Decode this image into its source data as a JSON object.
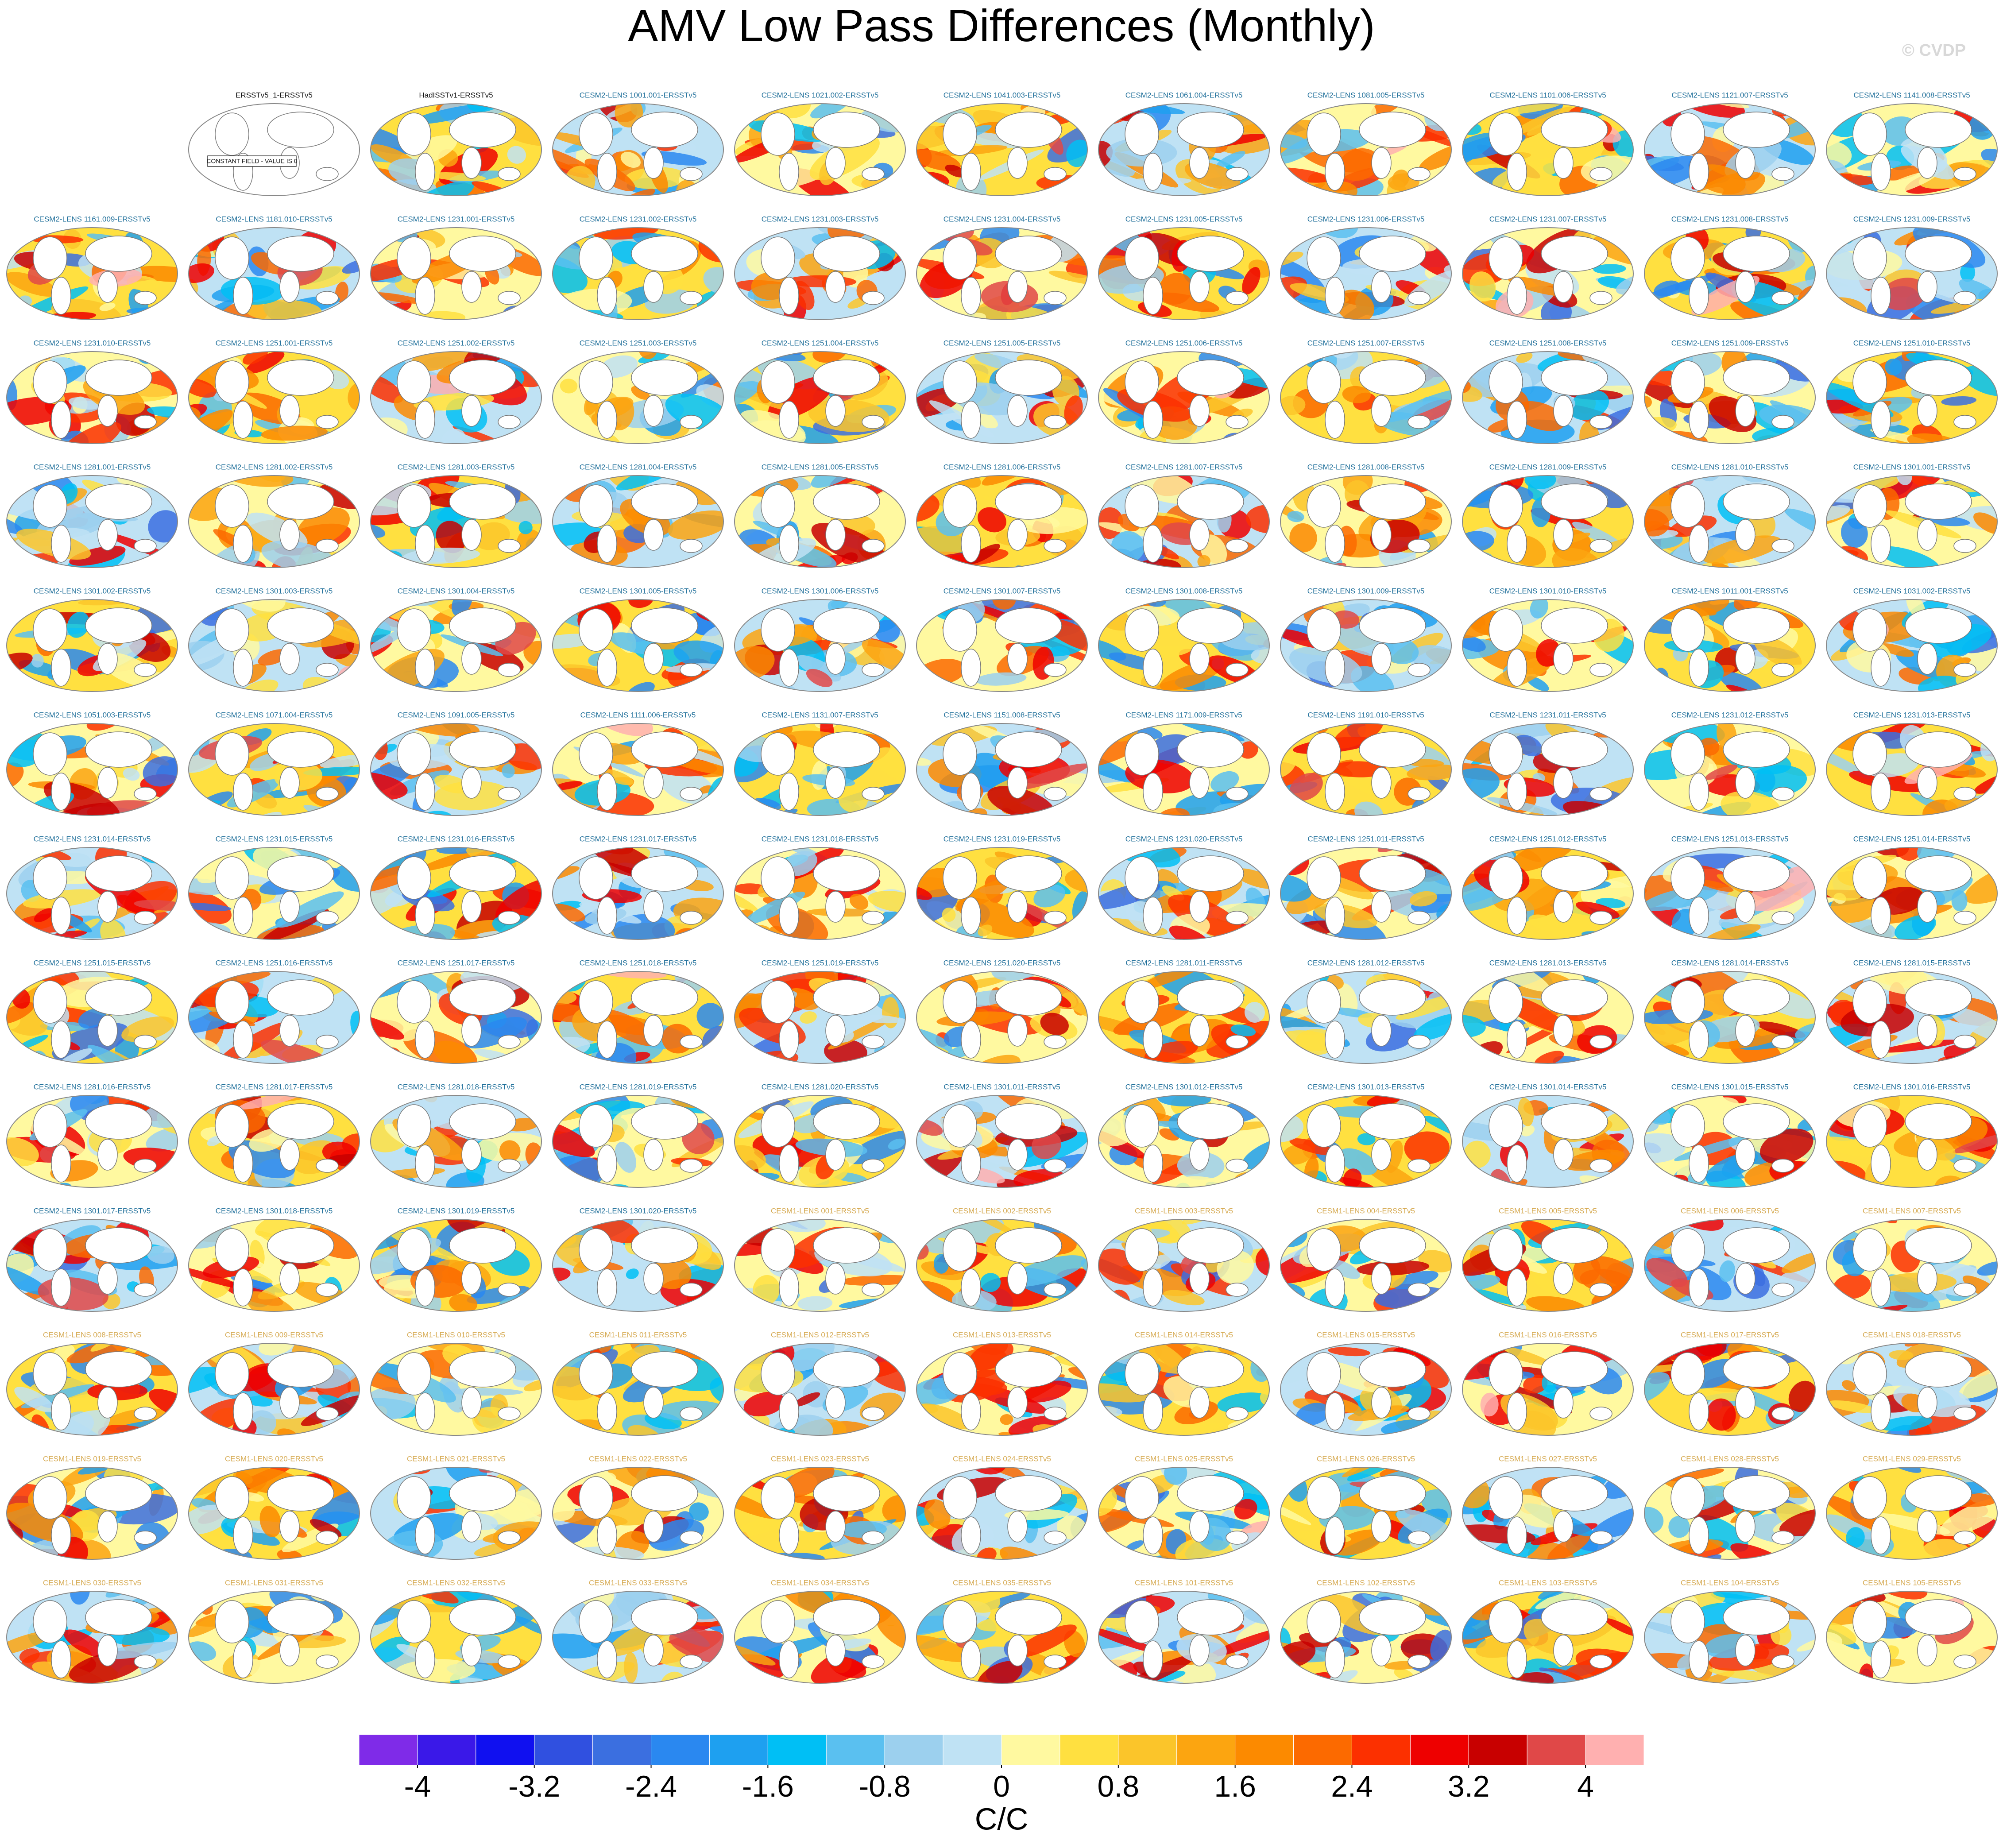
{
  "title": "AMV Low Pass Differences (Monthly)",
  "watermark": "© CVDP",
  "constant_field_note": "CONSTANT FIELD - VALUE IS 0",
  "panel_groups": [
    {
      "color": "#111111",
      "labels": [
        "ERSSTv5_1-ERSSTv5",
        "HadISSTv1-ERSSTv5"
      ]
    },
    {
      "color": "#1f6f9a",
      "labels": [
        "CESM2-LENS 1001.001-ERSSTv5",
        "CESM2-LENS 1021.002-ERSSTv5",
        "CESM2-LENS 1041.003-ERSSTv5",
        "CESM2-LENS 1061.004-ERSSTv5",
        "CESM2-LENS 1081.005-ERSSTv5",
        "CESM2-LENS 1101.006-ERSSTv5",
        "CESM2-LENS 1121.007-ERSSTv5",
        "CESM2-LENS 1141.008-ERSSTv5",
        "CESM2-LENS 1161.009-ERSSTv5",
        "CESM2-LENS 1181.010-ERSSTv5",
        "CESM2-LENS 1231.001-ERSSTv5",
        "CESM2-LENS 1231.002-ERSSTv5",
        "CESM2-LENS 1231.003-ERSSTv5",
        "CESM2-LENS 1231.004-ERSSTv5",
        "CESM2-LENS 1231.005-ERSSTv5",
        "CESM2-LENS 1231.006-ERSSTv5",
        "CESM2-LENS 1231.007-ERSSTv5",
        "CESM2-LENS 1231.008-ERSSTv5",
        "CESM2-LENS 1231.009-ERSSTv5",
        "CESM2-LENS 1231.010-ERSSTv5",
        "CESM2-LENS 1251.001-ERSSTv5",
        "CESM2-LENS 1251.002-ERSSTv5",
        "CESM2-LENS 1251.003-ERSSTv5",
        "CESM2-LENS 1251.004-ERSSTv5",
        "CESM2-LENS 1251.005-ERSSTv5",
        "CESM2-LENS 1251.006-ERSSTv5",
        "CESM2-LENS 1251.007-ERSSTv5",
        "CESM2-LENS 1251.008-ERSSTv5",
        "CESM2-LENS 1251.009-ERSSTv5",
        "CESM2-LENS 1251.010-ERSSTv5",
        "CESM2-LENS 1281.001-ERSSTv5",
        "CESM2-LENS 1281.002-ERSSTv5",
        "CESM2-LENS 1281.003-ERSSTv5",
        "CESM2-LENS 1281.004-ERSSTv5",
        "CESM2-LENS 1281.005-ERSSTv5",
        "CESM2-LENS 1281.006-ERSSTv5",
        "CESM2-LENS 1281.007-ERSSTv5",
        "CESM2-LENS 1281.008-ERSSTv5",
        "CESM2-LENS 1281.009-ERSSTv5",
        "CESM2-LENS 1281.010-ERSSTv5",
        "CESM2-LENS 1301.001-ERSSTv5",
        "CESM2-LENS 1301.002-ERSSTv5",
        "CESM2-LENS 1301.003-ERSSTv5",
        "CESM2-LENS 1301.004-ERSSTv5",
        "CESM2-LENS 1301.005-ERSSTv5",
        "CESM2-LENS 1301.006-ERSSTv5",
        "CESM2-LENS 1301.007-ERSSTv5",
        "CESM2-LENS 1301.008-ERSSTv5",
        "CESM2-LENS 1301.009-ERSSTv5",
        "CESM2-LENS 1301.010-ERSSTv5",
        "CESM2-LENS 1011.001-ERSSTv5",
        "CESM2-LENS 1031.002-ERSSTv5",
        "CESM2-LENS 1051.003-ERSSTv5",
        "CESM2-LENS 1071.004-ERSSTv5",
        "CESM2-LENS 1091.005-ERSSTv5",
        "CESM2-LENS 1111.006-ERSSTv5",
        "CESM2-LENS 1131.007-ERSSTv5",
        "CESM2-LENS 1151.008-ERSSTv5",
        "CESM2-LENS 1171.009-ERSSTv5",
        "CESM2-LENS 1191.010-ERSSTv5",
        "CESM2-LENS 1231.011-ERSSTv5",
        "CESM2-LENS 1231.012-ERSSTv5",
        "CESM2-LENS 1231.013-ERSSTv5",
        "CESM2-LENS 1231.014-ERSSTv5",
        "CESM2-LENS 1231.015-ERSSTv5",
        "CESM2-LENS 1231.016-ERSSTv5",
        "CESM2-LENS 1231.017-ERSSTv5",
        "CESM2-LENS 1231.018-ERSSTv5",
        "CESM2-LENS 1231.019-ERSSTv5",
        "CESM2-LENS 1231.020-ERSSTv5",
        "CESM2-LENS 1251.011-ERSSTv5",
        "CESM2-LENS 1251.012-ERSSTv5",
        "CESM2-LENS 1251.013-ERSSTv5",
        "CESM2-LENS 1251.014-ERSSTv5",
        "CESM2-LENS 1251.015-ERSSTv5",
        "CESM2-LENS 1251.016-ERSSTv5",
        "CESM2-LENS 1251.017-ERSSTv5",
        "CESM2-LENS 1251.018-ERSSTv5",
        "CESM2-LENS 1251.019-ERSSTv5",
        "CESM2-LENS 1251.020-ERSSTv5",
        "CESM2-LENS 1281.011-ERSSTv5",
        "CESM2-LENS 1281.012-ERSSTv5",
        "CESM2-LENS 1281.013-ERSSTv5",
        "CESM2-LENS 1281.014-ERSSTv5",
        "CESM2-LENS 1281.015-ERSSTv5",
        "CESM2-LENS 1281.016-ERSSTv5",
        "CESM2-LENS 1281.017-ERSSTv5",
        "CESM2-LENS 1281.018-ERSSTv5",
        "CESM2-LENS 1281.019-ERSSTv5",
        "CESM2-LENS 1281.020-ERSSTv5",
        "CESM2-LENS 1301.011-ERSSTv5",
        "CESM2-LENS 1301.012-ERSSTv5",
        "CESM2-LENS 1301.013-ERSSTv5",
        "CESM2-LENS 1301.014-ERSSTv5",
        "CESM2-LENS 1301.015-ERSSTv5",
        "CESM2-LENS 1301.016-ERSSTv5",
        "CESM2-LENS 1301.017-ERSSTv5",
        "CESM2-LENS 1301.018-ERSSTv5",
        "CESM2-LENS 1301.019-ERSSTv5",
        "CESM2-LENS 1301.020-ERSSTv5"
      ]
    },
    {
      "color": "#d6aa52",
      "labels": [
        "CESM1-LENS 001-ERSSTv5",
        "CESM1-LENS 002-ERSSTv5",
        "CESM1-LENS 003-ERSSTv5",
        "CESM1-LENS 004-ERSSTv5",
        "CESM1-LENS 005-ERSSTv5",
        "CESM1-LENS 006-ERSSTv5",
        "CESM1-LENS 007-ERSSTv5",
        "CESM1-LENS 008-ERSSTv5",
        "CESM1-LENS 009-ERSSTv5",
        "CESM1-LENS 010-ERSSTv5",
        "CESM1-LENS 011-ERSSTv5",
        "CESM1-LENS 012-ERSSTv5",
        "CESM1-LENS 013-ERSSTv5",
        "CESM1-LENS 014-ERSSTv5",
        "CESM1-LENS 015-ERSSTv5",
        "CESM1-LENS 016-ERSSTv5",
        "CESM1-LENS 017-ERSSTv5",
        "CESM1-LENS 018-ERSSTv5",
        "CESM1-LENS 019-ERSSTv5",
        "CESM1-LENS 020-ERSSTv5",
        "CESM1-LENS 021-ERSSTv5",
        "CESM1-LENS 022-ERSSTv5",
        "CESM1-LENS 023-ERSSTv5",
        "CESM1-LENS 024-ERSSTv5",
        "CESM1-LENS 025-ERSSTv5",
        "CESM1-LENS 026-ERSSTv5",
        "CESM1-LENS 027-ERSSTv5",
        "CESM1-LENS 028-ERSSTv5",
        "CESM1-LENS 029-ERSSTv5",
        "CESM1-LENS 030-ERSSTv5",
        "CESM1-LENS 031-ERSSTv5",
        "CESM1-LENS 032-ERSSTv5",
        "CESM1-LENS 033-ERSSTv5",
        "CESM1-LENS 034-ERSSTv5",
        "CESM1-LENS 035-ERSSTv5",
        "CESM1-LENS 101-ERSSTv5",
        "CESM1-LENS 102-ERSSTv5",
        "CESM1-LENS 103-ERSSTv5",
        "CESM1-LENS 104-ERSSTv5",
        "CESM1-LENS 105-ERSSTv5"
      ]
    }
  ],
  "colorbar": {
    "colors": [
      "#7f2be8",
      "#3a18e8",
      "#1010f0",
      "#3050e0",
      "#3b6fe0",
      "#2a88f0",
      "#1ea0f0",
      "#00bff5",
      "#5ac0f0",
      "#9cd0ee",
      "#bfe2f4",
      "#fff9a0",
      "#ffe040",
      "#fbc52a",
      "#fca510",
      "#fc8a00",
      "#fc6a00",
      "#fc3000",
      "#ee0000",
      "#c80000",
      "#e04848",
      "#ffb0b0"
    ],
    "range": [
      -4.4,
      4.4
    ],
    "ticks": [
      -4,
      -3.2,
      -2.4,
      -1.6,
      -0.8,
      0,
      0.8,
      1.6,
      2.4,
      3.2,
      4
    ],
    "label": "C/C"
  }
}
